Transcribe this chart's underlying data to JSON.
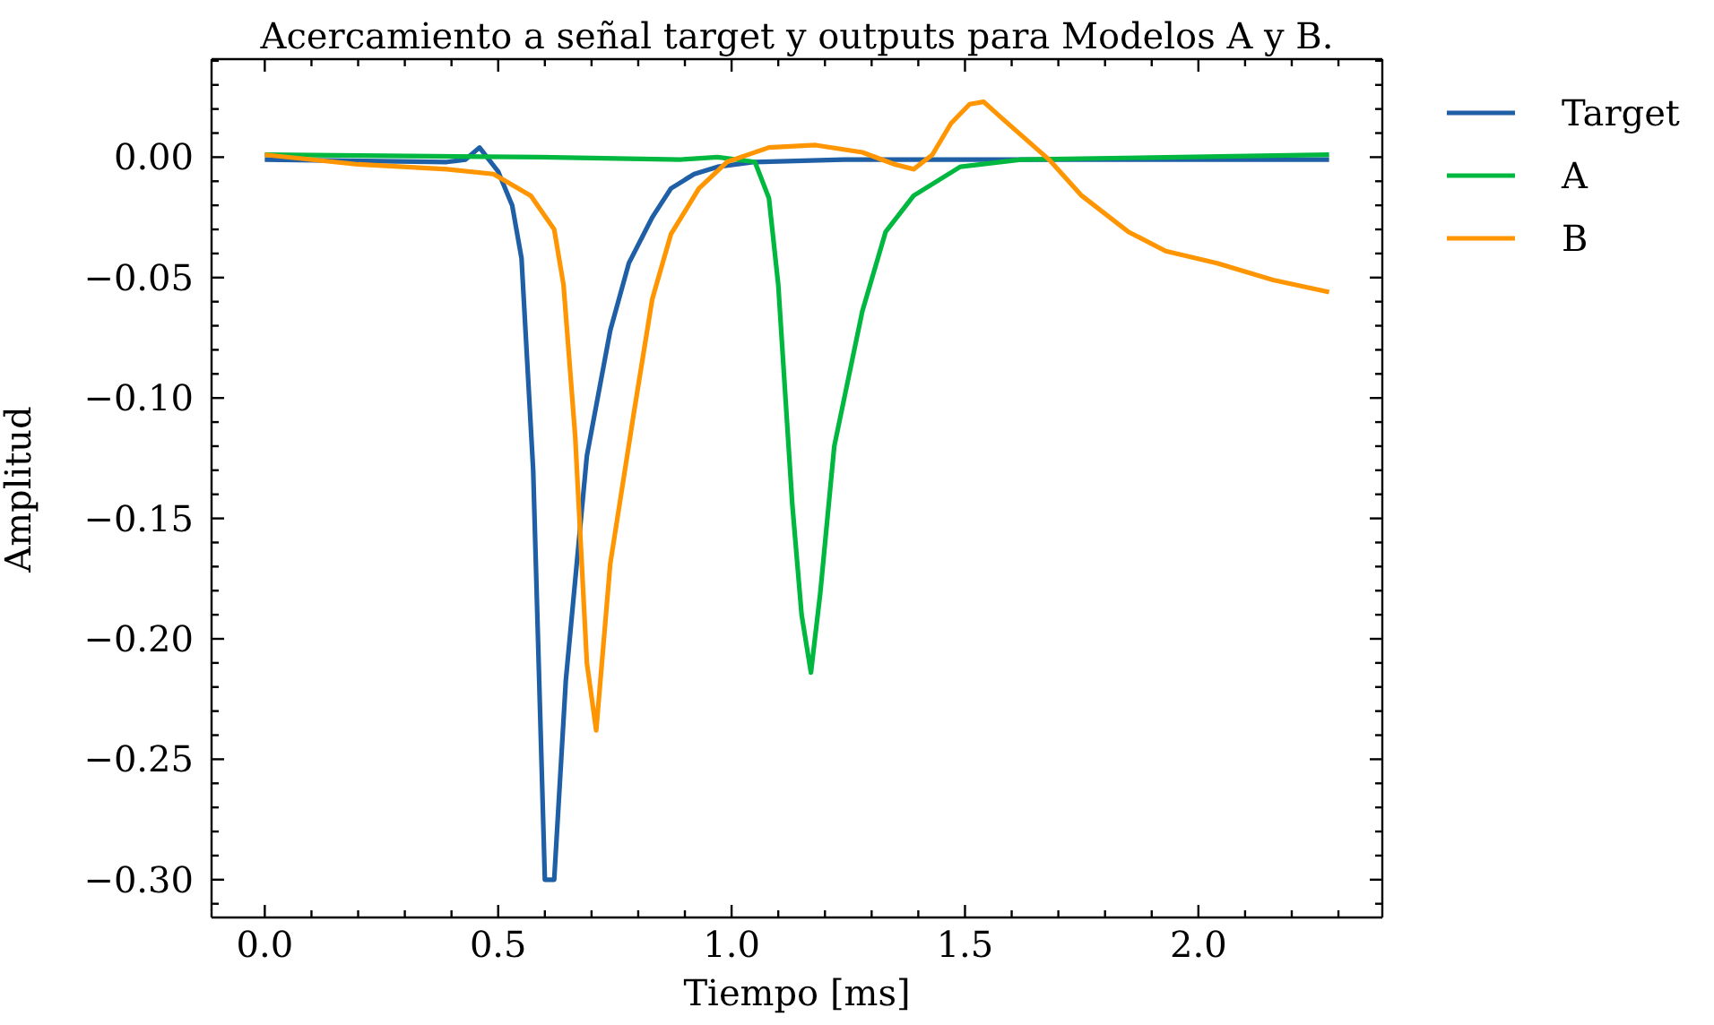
{
  "chart_data": {
    "type": "line",
    "title": "Acercamiento a señal target y outputs para Modelos A y B.",
    "xlabel": "Tiempo [ms]",
    "ylabel": "Amplitud",
    "xlim": [
      -0.114,
      2.394
    ],
    "ylim": [
      -0.3157,
      0.0407
    ],
    "xticks": [
      {
        "value": 0,
        "label": "0.0"
      },
      {
        "value": 0.1,
        "label": null
      },
      {
        "value": 0.2,
        "label": null
      },
      {
        "value": 0.3,
        "label": null
      },
      {
        "value": 0.4,
        "label": null
      },
      {
        "value": 0.5,
        "label": "0.5"
      },
      {
        "value": 0.6,
        "label": null
      },
      {
        "value": 0.7,
        "label": null
      },
      {
        "value": 0.8,
        "label": null
      },
      {
        "value": 0.9,
        "label": null
      },
      {
        "value": 1.0,
        "label": "1.0"
      },
      {
        "value": 1.1,
        "label": null
      },
      {
        "value": 1.2,
        "label": null
      },
      {
        "value": 1.3,
        "label": null
      },
      {
        "value": 1.4,
        "label": null
      },
      {
        "value": 1.5,
        "label": "1.5"
      },
      {
        "value": 1.6,
        "label": null
      },
      {
        "value": 1.7,
        "label": null
      },
      {
        "value": 1.8,
        "label": null
      },
      {
        "value": 1.9,
        "label": null
      },
      {
        "value": 2.0,
        "label": "2.0"
      },
      {
        "value": 2.1,
        "label": null
      },
      {
        "value": 2.2,
        "label": null
      },
      {
        "value": 2.3,
        "label": null
      }
    ],
    "yticks": [
      {
        "value": 0.04,
        "label": null
      },
      {
        "value": 0.03,
        "label": null
      },
      {
        "value": 0.02,
        "label": null
      },
      {
        "value": 0.01,
        "label": null
      },
      {
        "value": 0,
        "label": "0.00"
      },
      {
        "value": -0.01,
        "label": null
      },
      {
        "value": -0.02,
        "label": null
      },
      {
        "value": -0.03,
        "label": null
      },
      {
        "value": -0.04,
        "label": null
      },
      {
        "value": -0.05,
        "label": "−0.05"
      },
      {
        "value": -0.06,
        "label": null
      },
      {
        "value": -0.07,
        "label": null
      },
      {
        "value": -0.08,
        "label": null
      },
      {
        "value": -0.09,
        "label": null
      },
      {
        "value": -0.1,
        "label": "−0.10"
      },
      {
        "value": -0.11,
        "label": null
      },
      {
        "value": -0.12,
        "label": null
      },
      {
        "value": -0.13,
        "label": null
      },
      {
        "value": -0.14,
        "label": null
      },
      {
        "value": -0.15,
        "label": "−0.15"
      },
      {
        "value": -0.16,
        "label": null
      },
      {
        "value": -0.17,
        "label": null
      },
      {
        "value": -0.18,
        "label": null
      },
      {
        "value": -0.19,
        "label": null
      },
      {
        "value": -0.2,
        "label": "−0.20"
      },
      {
        "value": -0.21,
        "label": null
      },
      {
        "value": -0.22,
        "label": null
      },
      {
        "value": -0.23,
        "label": null
      },
      {
        "value": -0.24,
        "label": null
      },
      {
        "value": -0.25,
        "label": "−0.25"
      },
      {
        "value": -0.26,
        "label": null
      },
      {
        "value": -0.27,
        "label": null
      },
      {
        "value": -0.28,
        "label": null
      },
      {
        "value": -0.29,
        "label": null
      },
      {
        "value": -0.3,
        "label": "−0.30"
      },
      {
        "value": -0.31,
        "label": null
      }
    ],
    "grid": false,
    "legend": "right",
    "marker": "none",
    "line_style": "solid",
    "series": [
      {
        "name": "Target",
        "color": "#1f5fa6",
        "x": [
          0,
          0.39,
          0.43,
          0.46,
          0.5,
          0.53,
          0.55,
          0.575,
          0.6,
          0.62,
          0.645,
          0.69,
          0.74,
          0.78,
          0.83,
          0.87,
          0.92,
          0.97,
          1.05,
          1.24,
          2.28
        ],
        "values": [
          -0.001,
          -0.002,
          -0.001,
          0.004,
          -0.006,
          -0.02,
          -0.042,
          -0.13,
          -0.3,
          -0.3,
          -0.217,
          -0.124,
          -0.072,
          -0.044,
          -0.025,
          -0.013,
          -0.007,
          -0.004,
          -0.002,
          -0.001,
          -0.001
        ]
      },
      {
        "name": "A",
        "color": "#00b83f",
        "x": [
          0,
          0.59,
          0.89,
          0.97,
          1.05,
          1.08,
          1.1,
          1.13,
          1.15,
          1.17,
          1.19,
          1.22,
          1.28,
          1.33,
          1.39,
          1.49,
          1.62,
          2.28
        ],
        "values": [
          0.001,
          0,
          -0.001,
          0,
          -0.002,
          -0.017,
          -0.053,
          -0.144,
          -0.19,
          -0.214,
          -0.181,
          -0.12,
          -0.064,
          -0.031,
          -0.016,
          -0.004,
          -0.001,
          0.001
        ]
      },
      {
        "name": "B",
        "color": "#ff9500",
        "x": [
          0,
          0.2,
          0.39,
          0.49,
          0.57,
          0.62,
          0.64,
          0.665,
          0.69,
          0.71,
          0.74,
          0.79,
          0.83,
          0.87,
          0.93,
          0.99,
          1.08,
          1.18,
          1.28,
          1.35,
          1.39,
          1.43,
          1.47,
          1.51,
          1.54,
          1.58,
          1.68,
          1.75,
          1.85,
          1.93,
          2.04,
          2.16,
          2.28
        ],
        "values": [
          0.001,
          -0.003,
          -0.005,
          -0.007,
          -0.016,
          -0.03,
          -0.053,
          -0.116,
          -0.21,
          -0.238,
          -0.169,
          -0.107,
          -0.059,
          -0.032,
          -0.013,
          -0.002,
          0.004,
          0.005,
          0.002,
          -0.003,
          -0.005,
          0.001,
          0.014,
          0.022,
          0.023,
          0.016,
          -0.001,
          -0.016,
          -0.031,
          -0.039,
          -0.044,
          -0.051,
          -0.056
        ]
      }
    ]
  }
}
